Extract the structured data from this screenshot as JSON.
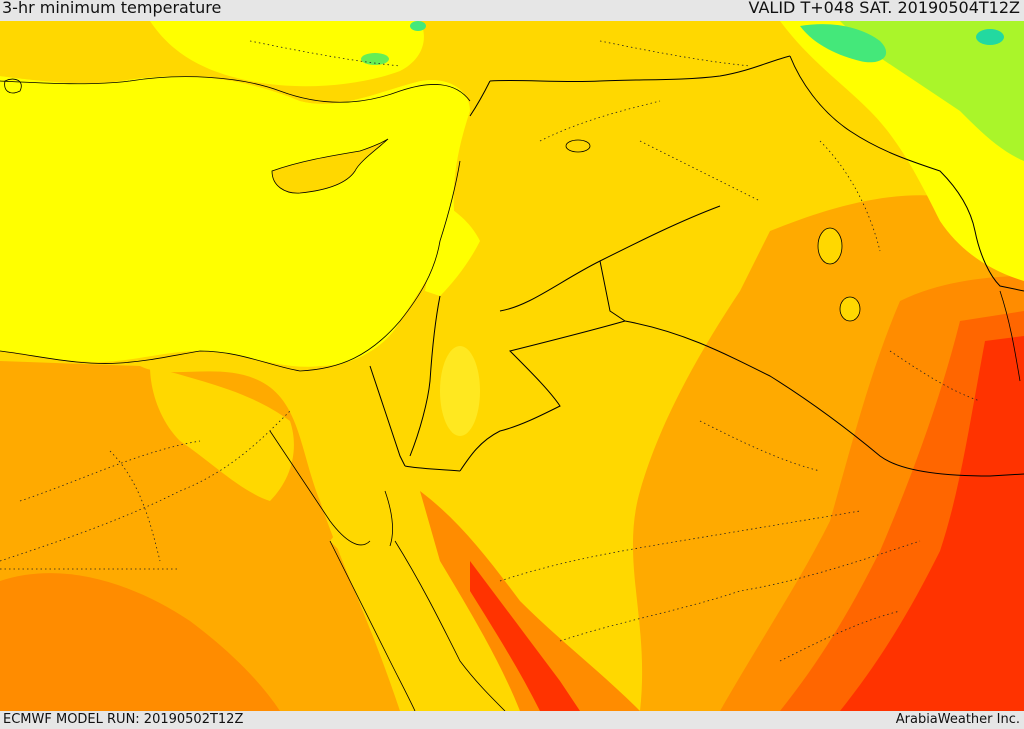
{
  "header": {
    "title": "3-hr minimum temperature",
    "valid": "VALID T+048 SAT. 20190504T12Z"
  },
  "footer": {
    "model_run": "ECMWF MODEL RUN: 20190502T12Z",
    "credit": "ArabiaWeather Inc."
  },
  "colors": {
    "sea_yellow": "#ffff00",
    "pale_orange": "#ffd800",
    "light_orange": "#ffaa00",
    "orange": "#ff8c00",
    "dark_orange": "#ff6600",
    "red_orange": "#ff3300",
    "light_green": "#aaf52a",
    "green": "#44e87a",
    "border_line": "#000000"
  }
}
